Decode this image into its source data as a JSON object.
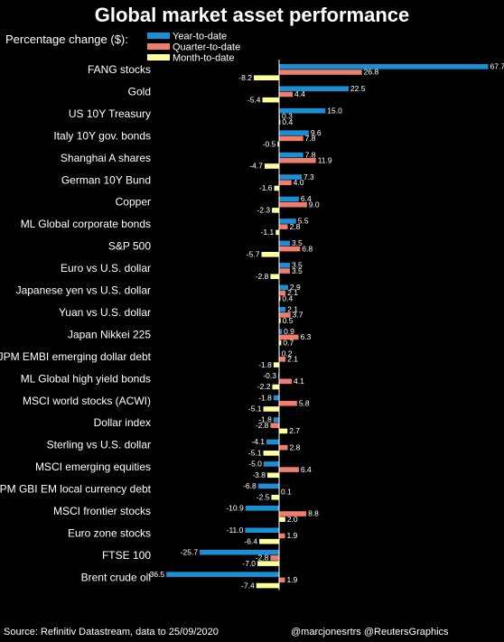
{
  "title": "Global market asset performance",
  "subtitle": "Percentage change ($):",
  "source": "Source: Refinitiv Datastream, data to 25/09/2020",
  "credit": "@marcjonesrtrs @ReutersGraphics",
  "colors": {
    "ytd": "#1a8fd6",
    "qtd": "#f07d6e",
    "mtd": "#ffff99",
    "axis": "#ffffff"
  },
  "chart_data": {
    "type": "bar",
    "orientation": "horizontal",
    "legend_position": "top-left",
    "categories": [
      "FANG stocks",
      "Gold",
      "US 10Y Treasury",
      "Italy 10Y gov. bonds",
      "Shanghai A shares",
      "German 10Y Bund",
      "Copper",
      "ML Global corporate bonds",
      "S&P 500",
      "Euro vs U.S. dollar",
      "Japanese yen vs U.S. dollar",
      "Yuan vs U.S. dollar",
      "Japan Nikkei 225",
      "JPM EMBI emerging dollar debt",
      "ML Global high yield bonds",
      "MSCI world stocks (ACWI)",
      "Dollar index",
      "Sterling vs U.S. dollar",
      "MSCI emerging equities",
      "JPM GBI EM local currency debt",
      "MSCI frontier stocks",
      "Euro zone stocks",
      "FTSE 100",
      "Brent crude oil"
    ],
    "series": [
      {
        "name": "Year-to-date",
        "color": "#1a8fd6",
        "values": [
          67.7,
          22.5,
          15.0,
          9.6,
          7.8,
          7.3,
          6.4,
          5.5,
          3.5,
          3.5,
          2.9,
          2.1,
          0.9,
          0.2,
          -0.3,
          -1.8,
          -1.8,
          -4.1,
          -5.0,
          -6.8,
          -10.9,
          -11.0,
          -25.7,
          -36.5
        ],
        "labels": [
          "67.7",
          "22.5",
          "15.0",
          "9.6",
          "7.8",
          "7.3",
          "6.4",
          "5.5",
          "3.5",
          "3.5",
          "2.9",
          "2.1",
          "0.9",
          "0.2",
          "-0.3",
          "-1.8",
          "-1.8",
          "-4.1",
          "-5.0",
          "-6.8",
          "-10.9",
          "-11.0",
          "-25.7",
          "-36.5"
        ]
      },
      {
        "name": "Quarter-to-date",
        "color": "#f07d6e",
        "values": [
          26.8,
          4.4,
          0.3,
          7.8,
          11.9,
          4.0,
          9.0,
          2.8,
          6.8,
          3.5,
          2.1,
          3.7,
          6.3,
          2.1,
          4.1,
          5.8,
          -2.8,
          2.8,
          6.4,
          null,
          8.8,
          1.9,
          -2.8,
          1.9
        ],
        "labels": [
          "26.8",
          "4.4",
          "0.3",
          "7.8",
          "11.9",
          "4.0",
          "9.0",
          "2.8",
          "6.8",
          "3.5",
          "2.1",
          "3.7",
          "6.3",
          "2.1",
          "4.1",
          "5.8",
          "-2.8",
          "2.8",
          "6.4",
          "0.1",
          "8.8",
          "1.9",
          "-2.8",
          "1.9"
        ]
      },
      {
        "name": "Month-to-date",
        "color": "#ffff99",
        "values": [
          -8.2,
          -5.4,
          0.4,
          -0.5,
          -4.7,
          -1.6,
          -2.3,
          -1.1,
          -5.7,
          -2.8,
          0.4,
          0.5,
          0.7,
          -1.8,
          -2.2,
          -5.1,
          2.7,
          -5.1,
          -3.8,
          -2.5,
          2.0,
          -6.4,
          -7.0,
          -7.4
        ],
        "labels": [
          "-8.2",
          "-5.4",
          "0.4",
          "-0.5",
          "-4.7",
          "-1.6",
          "-2.3",
          "-1.1",
          "-5.7",
          "-2.8",
          "0.4",
          "0.5",
          "0.7",
          "-1.8",
          "-2.2",
          "-5.1",
          "2.7",
          "-5.1",
          "-3.8",
          "-2.5",
          "2.0",
          "-6.4",
          "-7.0",
          "-7.4"
        ]
      }
    ]
  }
}
